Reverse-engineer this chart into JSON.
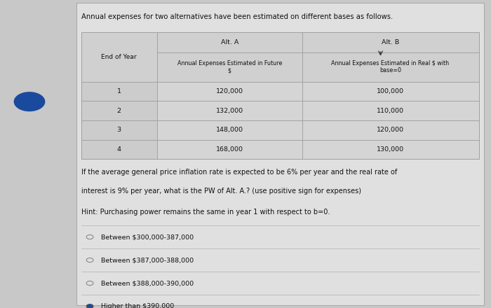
{
  "title": "Annual expenses for two alternatives have been estimated on different bases as follows.",
  "alt_a_label": "Alt. A",
  "alt_b_label": "Alt. B",
  "col1_header": "End of Year",
  "col2_header": "Annual Expenses Estimated in Future\n$",
  "col3_header": "Annual Expenses Estimated in Real $ with\nbase=0",
  "years": [
    "1",
    "2",
    "3",
    "4"
  ],
  "alt_a_values": [
    "120,000",
    "132,000",
    "148,000",
    "168,000"
  ],
  "alt_b_values": [
    "100,000",
    "110,000",
    "120,000",
    "130,000"
  ],
  "question_line1": "If the average general price inflation rate is expected to be 6% per year and the real rate of",
  "question_line2": "interest is 9% per year, what is the PW of Alt. A.? (use positive sign for expenses)",
  "hint": "Hint: Purchasing power remains the same in year 1 with respect to b=0.",
  "options": [
    "Between $300,000-387,000",
    "Between $387,000-388,000",
    "Between $388,000-390,000",
    "Higher than $390,000"
  ],
  "selected_option": 3,
  "page_bg": "#c8c8c8",
  "content_bg": "#e0e0e0",
  "table_cell_bg": "#d5d5d5",
  "table_header_bg": "#d0d0d0",
  "year_col_bg": "#cccccc",
  "option_row_bg": "#d8d8d8",
  "text_color": "#111111",
  "border_color": "#999999",
  "selected_dot_color": "#1a4a9e"
}
